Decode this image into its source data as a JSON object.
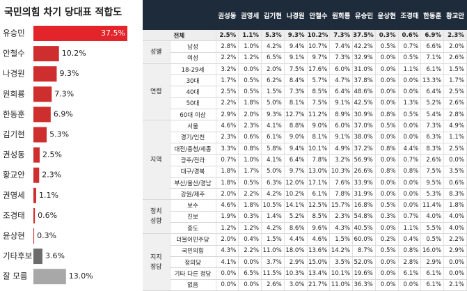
{
  "chart_data": {
    "type": "hbar",
    "title": "국민의힘 차기 당대표 적합도",
    "categories": [
      "유승민",
      "안철수",
      "나경원",
      "원희룡",
      "한동훈",
      "김기현",
      "권성동",
      "황교안",
      "권영세",
      "조경태",
      "윤상현",
      "기타후보",
      "잘 모름"
    ],
    "values": [
      37.5,
      10.2,
      9.3,
      7.3,
      6.9,
      5.3,
      2.5,
      2.3,
      1.1,
      0.6,
      0.3,
      3.6,
      13.0
    ],
    "value_labels": [
      "37.5%",
      "10.2%",
      "9.3%",
      "7.3%",
      "6.9%",
      "5.3%",
      "2.5%",
      "2.3%",
      "1.1%",
      "0.6%",
      "0.3%",
      "3.6%",
      "13.0%"
    ],
    "colors": [
      "#e3242b",
      "#cf2e2e",
      "#cf2e2e",
      "#cf2e2e",
      "#cf2e2e",
      "#cf2e2e",
      "#cf2e2e",
      "#cf2e2e",
      "#cf2e2e",
      "#cf2e2e",
      "#cf2e2e",
      "#6b6b6b",
      "#a8a8a8"
    ]
  },
  "table": {
    "columns": [
      "권성동",
      "권영세",
      "김기현",
      "나경원",
      "안철수",
      "원희룡",
      "유승민",
      "윤상현",
      "조경태",
      "한동훈",
      "황교안"
    ],
    "total": {
      "label": "전체",
      "cells": [
        "2.5%",
        "1.1%",
        "5.3%",
        "9.3%",
        "10.2%",
        "7.3%",
        "37.5%",
        "0.3%",
        "0.6%",
        "6.9%",
        "2.3%"
      ]
    },
    "groups": [
      {
        "label": "성별",
        "rows": [
          {
            "label": "남성",
            "cells": [
              "2.8%",
              "1.0%",
              "4.2%",
              "9.4%",
              "10.7%",
              "7.4%",
              "42.2%",
              "0.5%",
              "0.7%",
              "6.6%",
              "2.0%"
            ]
          },
          {
            "label": "여성",
            "cells": [
              "2.2%",
              "1.2%",
              "6.5%",
              "9.1%",
              "9.7%",
              "7.3%",
              "32.9%",
              "0.0%",
              "0.5%",
              "7.1%",
              "2.6%"
            ]
          }
        ]
      },
      {
        "label": "연령",
        "rows": [
          {
            "label": "18-29세",
            "cells": [
              "3.2%",
              "0.0%",
              "2.0%",
              "7.5%",
              "17.6%",
              "6.0%",
              "31.0%",
              "0.0%",
              "1.1%",
              "6.1%",
              "1.5%"
            ]
          },
          {
            "label": "30대",
            "cells": [
              "1.7%",
              "0.5%",
              "6.2%",
              "8.4%",
              "5.7%",
              "4.7%",
              "37.8%",
              "0.0%",
              "0.0%",
              "13.3%",
              "1.7%"
            ]
          },
          {
            "label": "40대",
            "cells": [
              "2.5%",
              "0.5%",
              "1.5%",
              "7.3%",
              "8.5%",
              "6.4%",
              "48.6%",
              "0.0%",
              "0.0%",
              "6.4%",
              "2.5%"
            ]
          },
          {
            "label": "50대",
            "cells": [
              "2.2%",
              "1.8%",
              "5.0%",
              "8.1%",
              "7.5%",
              "9.1%",
              "42.5%",
              "0.0%",
              "1.3%",
              "5.2%",
              "2.6%"
            ]
          },
          {
            "label": "60대 이상",
            "cells": [
              "2.9%",
              "2.0%",
              "9.3%",
              "12.7%",
              "11.2%",
              "8.9%",
              "30.9%",
              "0.8%",
              "0.5%",
              "5.4%",
              "2.8%"
            ]
          }
        ]
      },
      {
        "label": "지역",
        "rows": [
          {
            "label": "서울",
            "cells": [
              "4.6%",
              "2.3%",
              "4.1%",
              "8.8%",
              "9.0%",
              "6.0%",
              "37.0%",
              "0.5%",
              "0.0%",
              "7.3%",
              "4.9%"
            ]
          },
          {
            "label": "경기/인천",
            "cells": [
              "2.3%",
              "0.6%",
              "6.1%",
              "9.0%",
              "8.1%",
              "9.1%",
              "38.0%",
              "0.0%",
              "0.0%",
              "6.3%",
              "1.1%"
            ]
          },
          {
            "label": "대전/충청/세종",
            "cells": [
              "3.3%",
              "0.8%",
              "5.8%",
              "9.4%",
              "10.1%",
              "4.9%",
              "37.2%",
              "0.8%",
              "4.4%",
              "8.3%",
              "2.5%"
            ]
          },
          {
            "label": "광주/전라",
            "cells": [
              "0.7%",
              "1.0%",
              "4.1%",
              "6.4%",
              "7.8%",
              "3.2%",
              "56.9%",
              "0.0%",
              "0.7%",
              "2.6%",
              "0.0%"
            ]
          },
          {
            "label": "대구/경북",
            "cells": [
              "1.8%",
              "1.7%",
              "5.0%",
              "9.7%",
              "13.0%",
              "10.3%",
              "26.6%",
              "0.8%",
              "0.8%",
              "7.5%",
              "3.5%"
            ]
          },
          {
            "label": "부산/울산/경남",
            "cells": [
              "1.8%",
              "0.5%",
              "6.3%",
              "12.0%",
              "17.1%",
              "7.6%",
              "33.9%",
              "0.0%",
              "0.0%",
              "9.5%",
              "0.6%"
            ]
          },
          {
            "label": "강원/제주",
            "cells": [
              "2.0%",
              "2.2%",
              "4.2%",
              "10.2%",
              "6.1%",
              "7.8%",
              "31.9%",
              "0.0%",
              "0.0%",
              "5.3%",
              "8.3%"
            ]
          }
        ]
      },
      {
        "label": "정치\n성향",
        "rows": [
          {
            "label": "보수",
            "cells": [
              "4.6%",
              "1.8%",
              "10.5%",
              "14.1%",
              "12.5%",
              "15.7%",
              "16.8%",
              "0.5%",
              "0.0%",
              "11.4%",
              "1.8%"
            ]
          },
          {
            "label": "진보",
            "cells": [
              "1.9%",
              "0.3%",
              "1.4%",
              "5.2%",
              "8.5%",
              "2.3%",
              "54.8%",
              "0.3%",
              "0.7%",
              "4.0%",
              "4.0%"
            ]
          },
          {
            "label": "중도",
            "cells": [
              "1.2%",
              "1.2%",
              "4.2%",
              "8.6%",
              "9.6%",
              "4.3%",
              "40.5%",
              "0.0%",
              "1.1%",
              "5.5%",
              "4.0%"
            ]
          }
        ]
      },
      {
        "label": "지지\n정당",
        "rows": [
          {
            "label": "더불어민주당",
            "cells": [
              "2.0%",
              "0.4%",
              "1.5%",
              "4.4%",
              "4.6%",
              "1.5%",
              "60.0%",
              "0.2%",
              "0.4%",
              "0.5%",
              "2.2%"
            ]
          },
          {
            "label": "국민의힘",
            "cells": [
              "4.3%",
              "2.2%",
              "11.0%",
              "18.0%",
              "13.6%",
              "14.2%",
              "8.7%",
              "0.5%",
              "0.8%",
              "16.0%",
              "2.9%"
            ]
          },
          {
            "label": "정의당",
            "cells": [
              "4.1%",
              "0.0%",
              "3.7%",
              "2.9%",
              "15.0%",
              "3.5%",
              "52.0%",
              "0.0%",
              "2.8%",
              "2.9%",
              "0.0%"
            ]
          },
          {
            "label": "기타 다른 정당",
            "cells": [
              "0.0%",
              "6.5%",
              "11.5%",
              "10.3%",
              "13.4%",
              "10.1%",
              "19.6%",
              "0.0%",
              "6.1%",
              "6.1%",
              "0.0%"
            ]
          },
          {
            "label": "없음",
            "cells": [
              "0.0%",
              "0.0%",
              "2.6%",
              "3.0%",
              "21.7%",
              "11.0%",
              "36.3%",
              "0.0%",
              "0.0%",
              "6.1%",
              "2.1%"
            ]
          }
        ]
      }
    ]
  }
}
